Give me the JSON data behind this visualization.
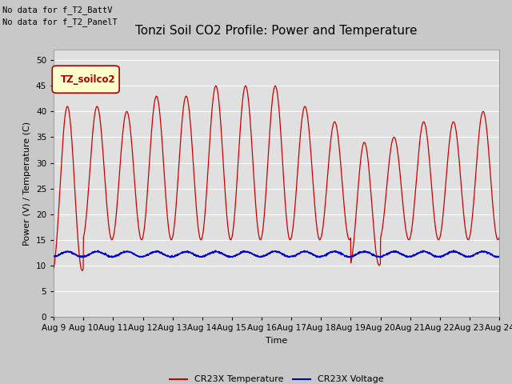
{
  "title": "Tonzi Soil CO2 Profile: Power and Temperature",
  "ylabel": "Power (V) / Temperature (C)",
  "xlabel": "Time",
  "no_data_text1": "No data for f_T2_BattV",
  "no_data_text2": "No data for f_T2_PanelT",
  "legend_label": "TZ_soilco2",
  "legend_bg": "#FFFFCC",
  "legend_edge": "#AA0000",
  "ylim": [
    0,
    52
  ],
  "yticks": [
    0,
    5,
    10,
    15,
    20,
    25,
    30,
    35,
    40,
    45,
    50
  ],
  "x_start_day": 9,
  "x_end_day": 24,
  "x_tick_days": [
    9,
    10,
    11,
    12,
    13,
    14,
    15,
    16,
    17,
    18,
    19,
    20,
    21,
    22,
    23,
    24
  ],
  "x_tick_labels": [
    "Aug 9",
    "Aug 10",
    "Aug 11",
    "Aug 12",
    "Aug 13",
    "Aug 14",
    "Aug 15",
    "Aug 16",
    "Aug 17",
    "Aug 18",
    "Aug 19",
    "Aug 20",
    "Aug 21",
    "Aug 22",
    "Aug 23",
    "Aug 24"
  ],
  "fig_bg": "#C8C8C8",
  "plot_bg": "#E0E0E0",
  "line_color_temp": "#CC0000",
  "line_color_volt": "#0000CC",
  "legend_temp": "CR23X Temperature",
  "legend_volt": "CR23X Voltage",
  "title_fontsize": 11,
  "label_fontsize": 8,
  "tick_fontsize": 7.5
}
